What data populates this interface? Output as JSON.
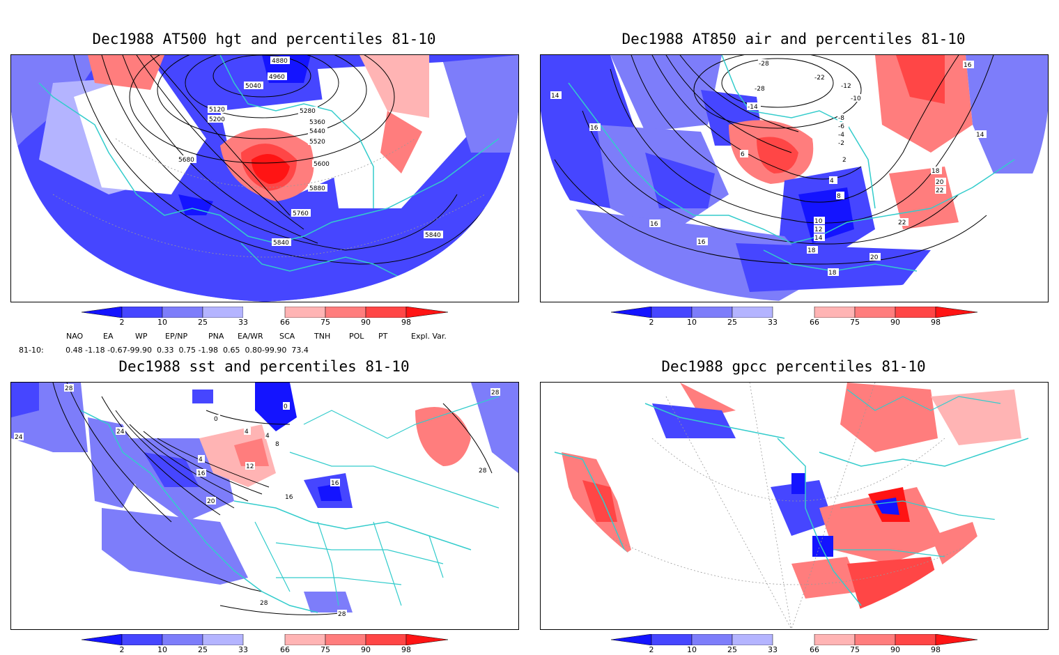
{
  "panels": [
    {
      "title": "Dec1988 AT500 hgt and percentiles 81-10",
      "contour_labels": [
        "4880",
        "4960",
        "5040",
        "5120",
        "5200",
        "5280",
        "5360",
        "5440",
        "5520",
        "5600",
        "5680",
        "5880",
        "5760",
        "5840",
        "5840"
      ]
    },
    {
      "title": "Dec1988 AT850 air and percentiles 81-10",
      "contour_labels": [
        "-28",
        "-22",
        "-28",
        "-14",
        "-12",
        "-10",
        "-8",
        "-6",
        "-4",
        "-2",
        "2",
        "4",
        "6",
        "8",
        "10",
        "12",
        "14",
        "16",
        "16",
        "16",
        "16",
        "18",
        "18",
        "18",
        "20",
        "20",
        "22",
        "22",
        "14",
        "14"
      ]
    },
    {
      "title": "Dec1988 sst and percentiles 81-10",
      "contour_labels": [
        "28",
        "28",
        "24",
        "24",
        "0",
        "4",
        "4",
        "8",
        "12",
        "16",
        "20",
        "16",
        "16",
        "0",
        "4",
        "28",
        "28",
        "28"
      ]
    },
    {
      "title": "Dec1988 gpcc percentiles 81-10",
      "contour_labels": []
    }
  ],
  "colorbar": {
    "labels": [
      "2",
      "10",
      "25",
      "33",
      "66",
      "75",
      "90",
      "98"
    ],
    "colors": {
      "b1": "#1414ff",
      "b2": "#4646ff",
      "b3": "#7d7dfa",
      "b4": "#b4b4ff",
      "r1": "#ffb4b4",
      "r2": "#ff7d7d",
      "r3": "#ff4646",
      "r4": "#ff1414"
    }
  },
  "indices": {
    "headers": [
      "NAO",
      "EA",
      "WP",
      "EP/NP",
      "PNA",
      "EA/WR",
      "SCA",
      "TNH",
      "POL",
      "PT",
      "Expl. Var."
    ],
    "row_label": "81-10:",
    "values": "0.48 -1.18 -0.67-99.90  0.33  0.75 -1.98  0.65  0.80-99.90  73.4"
  },
  "colors": {
    "coastline": "#33cccc",
    "contour": "#000000",
    "grid": "#999999"
  }
}
